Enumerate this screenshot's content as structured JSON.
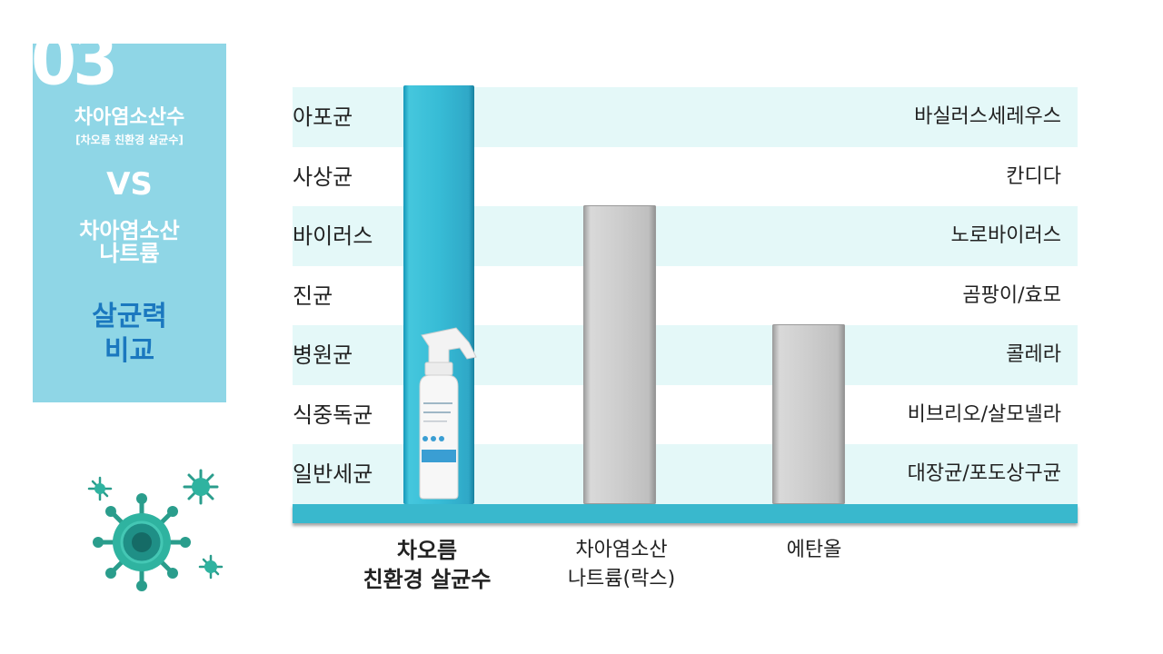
{
  "slide": {
    "number": "03",
    "title_line1": "차아염소산수",
    "title_line2": "[차오름 친환경 살균수]",
    "vs": "VS",
    "compare_line1": "차아염소산",
    "compare_line2": "나트륨",
    "heading_line1": "살균력",
    "heading_line2": "비교"
  },
  "chart_data": {
    "type": "bar",
    "categories": [
      [
        "차오름",
        "친환경 살균수"
      ],
      [
        "차아염소산",
        "나트륨(락스)"
      ],
      [
        "에탄올"
      ]
    ],
    "values": [
      7,
      5,
      3
    ],
    "ylim": [
      0,
      7
    ],
    "left_labels": [
      "아포균",
      "사상균",
      "바이러스",
      "진균",
      "병원균",
      "식중독균",
      "일반세균"
    ],
    "right_labels": [
      "바실러스세레우스",
      "칸디다",
      "노로바이러스",
      "곰팡이/효모",
      "콜레라",
      "비브리오/살모넬라",
      "대장균/포도상구균"
    ],
    "colors": {
      "product": "#37bcd6",
      "others": "#cccccc",
      "base": "#39b8cd",
      "stripe": "#e4f8f8"
    }
  }
}
